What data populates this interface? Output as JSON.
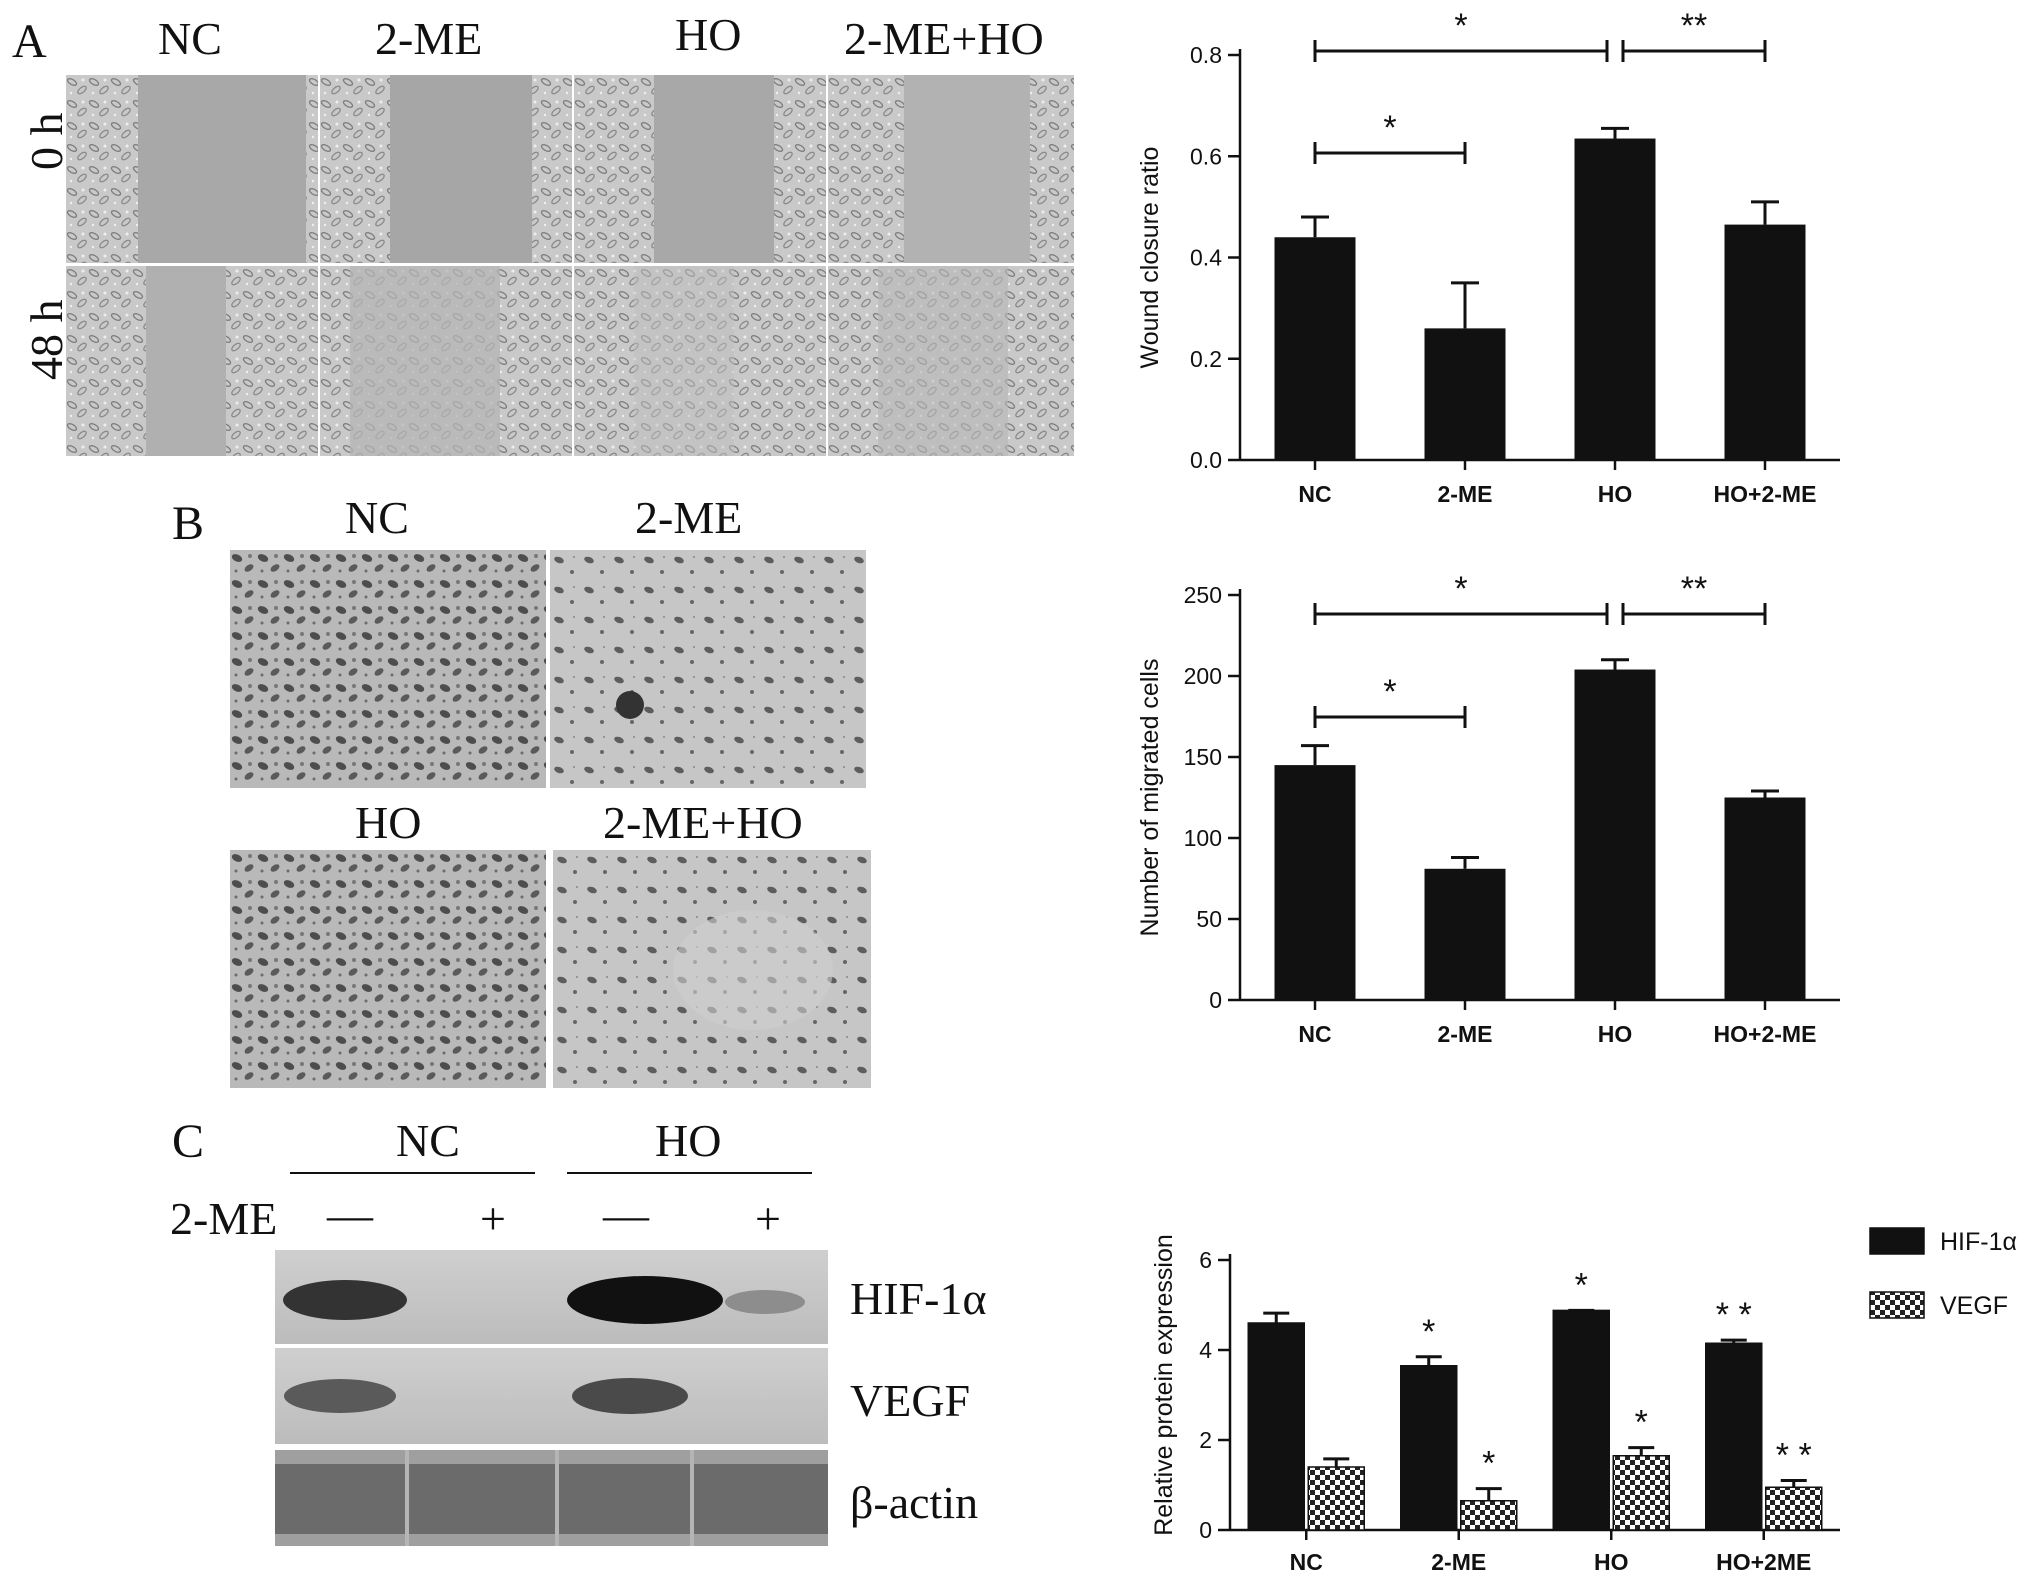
{
  "panelA": {
    "letter": "A",
    "columns": [
      "NC",
      "2-ME",
      "HO",
      "2-ME+HO"
    ],
    "rows": [
      "0 h",
      "48 h"
    ]
  },
  "panelB": {
    "letter": "B",
    "labels": [
      "NC",
      "2-ME",
      "HO",
      "2-ME+HO"
    ]
  },
  "panelC": {
    "letter": "C",
    "group_labels": [
      "NC",
      "HO"
    ],
    "treatment_label": "2-ME",
    "lane_signs": [
      "—",
      "+",
      "—",
      "+"
    ],
    "bands": [
      "HIF-1α",
      "VEGF",
      "β-actin"
    ]
  },
  "chart_data": [
    {
      "type": "bar",
      "categories": [
        "NC",
        "2-ME",
        "HO",
        "HO+2-ME"
      ],
      "values": [
        0.44,
        0.26,
        0.635,
        0.465
      ],
      "errors": [
        0.04,
        0.09,
        0.02,
        0.045
      ],
      "ylabel": "Wound closure ratio",
      "ylim": [
        0,
        0.8
      ],
      "yticks": [
        "0.0",
        "0.2",
        "0.4",
        "0.6",
        "0.8"
      ],
      "significance": [
        {
          "from": 0,
          "to": 2,
          "label": "*"
        },
        {
          "from": 2,
          "to": 3,
          "label": "**"
        },
        {
          "from": 0,
          "to": 1,
          "label": "*"
        }
      ]
    },
    {
      "type": "bar",
      "categories": [
        "NC",
        "2-ME",
        "HO",
        "HO+2-ME"
      ],
      "values": [
        145,
        81,
        204,
        125
      ],
      "errors": [
        12,
        7,
        6,
        4
      ],
      "ylabel": "Number of migrated cells",
      "ylim": [
        0,
        250
      ],
      "yticks": [
        "0",
        "50",
        "100",
        "150",
        "200",
        "250"
      ],
      "significance": [
        {
          "from": 0,
          "to": 2,
          "label": "*"
        },
        {
          "from": 2,
          "to": 3,
          "label": "**"
        },
        {
          "from": 0,
          "to": 1,
          "label": "*"
        }
      ]
    },
    {
      "type": "bar",
      "categories": [
        "NC",
        "2-ME",
        "HO",
        "HO+2ME"
      ],
      "series": [
        {
          "name": "HIF-1α",
          "values": [
            4.6,
            3.65,
            4.88,
            4.15
          ],
          "errors": [
            0.22,
            0.2,
            0.0,
            0.07
          ],
          "marks": [
            "",
            "*",
            "*",
            "* *"
          ]
        },
        {
          "name": "VEGF",
          "values": [
            1.4,
            0.65,
            1.65,
            0.95
          ],
          "errors": [
            0.18,
            0.27,
            0.18,
            0.15
          ],
          "marks": [
            "",
            "*",
            "*",
            "* *"
          ]
        }
      ],
      "ylabel": "Relative protein expression",
      "ylim": [
        0,
        6
      ],
      "yticks": [
        "0",
        "2",
        "4",
        "6"
      ],
      "legend": "right"
    }
  ]
}
